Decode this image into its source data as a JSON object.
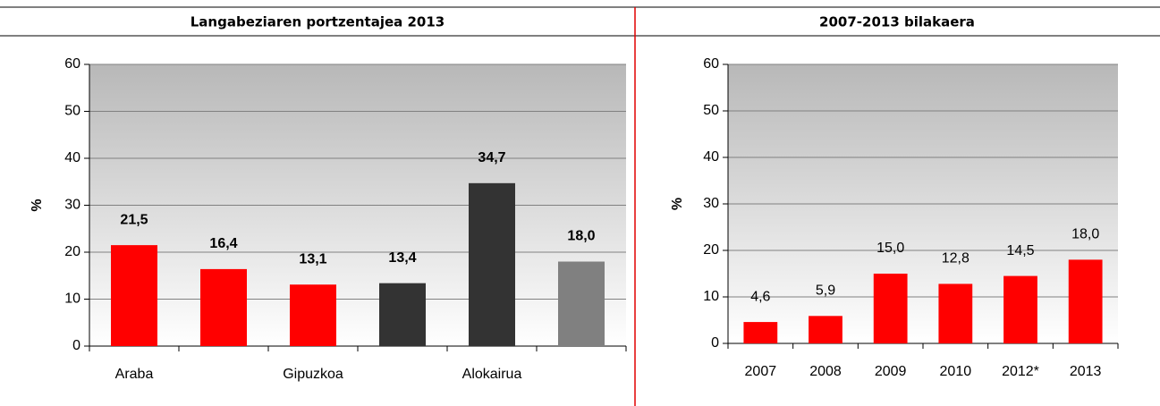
{
  "chart_data": [
    {
      "type": "bar",
      "title": "Langabeziaren portzentajea 2013",
      "ylabel": "%",
      "categories": [
        "Araba",
        null,
        "Gipuzkoa",
        null,
        "Alokairua",
        null
      ],
      "values": [
        21.5,
        16.4,
        13.1,
        13.4,
        34.7,
        18.0
      ],
      "value_labels": [
        "21,5",
        "16,4",
        "13,1",
        "13,4",
        "34,7",
        "18,0"
      ],
      "colors": [
        "#ff0000",
        "#ff0000",
        "#ff0000",
        "#333333",
        "#333333",
        "#808080"
      ],
      "ylim": [
        0,
        60
      ],
      "yticks": [
        0,
        10,
        20,
        30,
        40,
        50,
        60
      ],
      "grid": true
    },
    {
      "type": "bar",
      "title": "2007-2013 bilakaera",
      "ylabel": "%",
      "categories": [
        "2007",
        "2008",
        "2009",
        "2010",
        "2012*",
        "2013"
      ],
      "values": [
        4.6,
        5.9,
        15.0,
        12.8,
        14.5,
        18.0
      ],
      "value_labels": [
        "4,6",
        "5,9",
        "15,0",
        "12,8",
        "14,5",
        "18,0"
      ],
      "color": "#ff0000",
      "ylim": [
        0,
        60
      ],
      "yticks": [
        0,
        10,
        20,
        30,
        40,
        50,
        60
      ],
      "grid": true
    }
  ]
}
